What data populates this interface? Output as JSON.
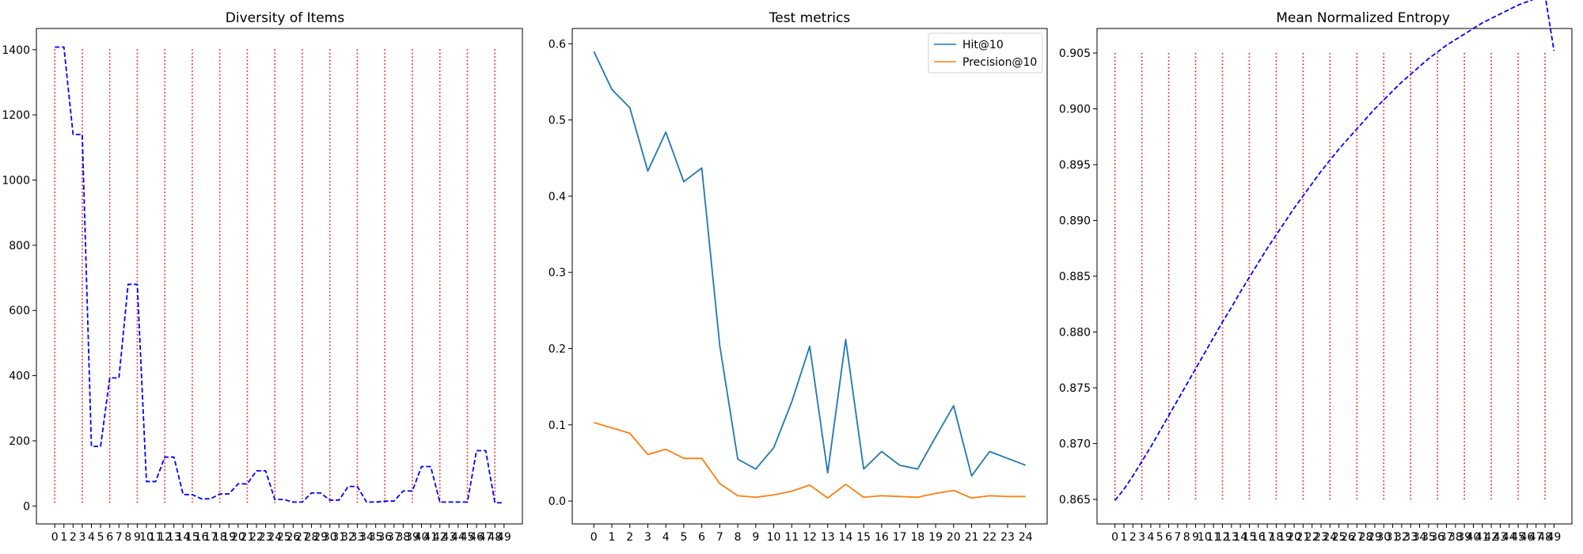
{
  "chart_data": [
    {
      "type": "line",
      "title": "Diversity of Items",
      "xlabel": "",
      "ylabel": "",
      "xlim": [
        -2,
        51
      ],
      "ylim": [
        -55,
        1465
      ],
      "x_ticks": [
        0,
        1,
        2,
        3,
        4,
        5,
        6,
        7,
        8,
        9,
        10,
        11,
        12,
        13,
        14,
        15,
        16,
        17,
        18,
        19,
        20,
        21,
        22,
        23,
        24,
        25,
        26,
        27,
        28,
        29,
        30,
        31,
        32,
        33,
        34,
        35,
        36,
        37,
        38,
        39,
        40,
        41,
        42,
        43,
        44,
        45,
        46,
        47,
        48,
        49
      ],
      "y_ticks": [
        0,
        200,
        400,
        600,
        800,
        1000,
        1200,
        1400
      ],
      "grid": false,
      "vlines": {
        "x": [
          0,
          3,
          6,
          9,
          12,
          15,
          18,
          21,
          24,
          27,
          30,
          33,
          36,
          39,
          42,
          45,
          48
        ],
        "ymin": 10,
        "ymax": 1405,
        "color": "#ff0000",
        "style": "dotted"
      },
      "series": [
        {
          "color": "#0000ff",
          "style": "dashed",
          "x": [
            0,
            1,
            2,
            3,
            4,
            5,
            6,
            7,
            8,
            9,
            10,
            11,
            12,
            13,
            14,
            15,
            16,
            17,
            18,
            19,
            20,
            21,
            22,
            23,
            24,
            25,
            26,
            27,
            28,
            29,
            30,
            31,
            32,
            33,
            34,
            35,
            36,
            37,
            38,
            39,
            40,
            41,
            42,
            43,
            44,
            45,
            46,
            47,
            48,
            49
          ],
          "values": [
            1408,
            1408,
            1140,
            1140,
            183,
            183,
            393,
            393,
            680,
            680,
            75,
            75,
            150,
            150,
            35,
            35,
            22,
            22,
            37,
            37,
            68,
            68,
            108,
            108,
            20,
            20,
            12,
            12,
            40,
            40,
            18,
            18,
            60,
            60,
            12,
            12,
            15,
            15,
            46,
            46,
            121,
            121,
            12,
            12,
            12,
            12,
            170,
            170,
            10,
            10
          ]
        }
      ]
    },
    {
      "type": "line",
      "title": "Test metrics",
      "xlabel": "",
      "ylabel": "",
      "xlim": [
        -1.2,
        25.2
      ],
      "ylim": [
        -0.03,
        0.62
      ],
      "x_ticks": [
        0,
        1,
        2,
        3,
        4,
        5,
        6,
        7,
        8,
        9,
        10,
        11,
        12,
        13,
        14,
        15,
        16,
        17,
        18,
        19,
        20,
        21,
        22,
        23,
        24
      ],
      "y_ticks": [
        0.0,
        0.1,
        0.2,
        0.3,
        0.4,
        0.5,
        0.6
      ],
      "y_tick_labels": [
        "0.0",
        "0.1",
        "0.2",
        "0.3",
        "0.4",
        "0.5",
        "0.6"
      ],
      "grid": false,
      "legend": "top-right",
      "series": [
        {
          "name": "Hit@10",
          "color": "#1f77b4",
          "style": "solid",
          "x": [
            0,
            1,
            2,
            3,
            4,
            5,
            6,
            7,
            8,
            9,
            10,
            11,
            12,
            13,
            14,
            15,
            16,
            17,
            18,
            19,
            20,
            21,
            22,
            23,
            24
          ],
          "values": [
            0.59,
            0.54,
            0.516,
            0.433,
            0.484,
            0.419,
            0.437,
            0.204,
            0.055,
            0.042,
            0.07,
            0.13,
            0.203,
            0.037,
            0.212,
            0.042,
            0.065,
            0.047,
            0.042,
            0.084,
            0.125,
            0.033,
            0.065,
            0.056,
            0.047
          ]
        },
        {
          "name": "Precision@10",
          "color": "#ff7f0e",
          "style": "solid",
          "x": [
            0,
            1,
            2,
            3,
            4,
            5,
            6,
            7,
            8,
            9,
            10,
            11,
            12,
            13,
            14,
            15,
            16,
            17,
            18,
            19,
            20,
            21,
            22,
            23,
            24
          ],
          "values": [
            0.103,
            0.096,
            0.089,
            0.061,
            0.068,
            0.056,
            0.056,
            0.023,
            0.007,
            0.005,
            0.008,
            0.013,
            0.021,
            0.004,
            0.022,
            0.005,
            0.007,
            0.006,
            0.005,
            0.01,
            0.014,
            0.004,
            0.007,
            0.006,
            0.006
          ]
        }
      ]
    },
    {
      "type": "line",
      "title": "Mean Normalized Entropy",
      "xlabel": "",
      "ylabel": "",
      "xlim": [
        -2,
        51
      ],
      "ylim": [
        0.8628,
        0.9072
      ],
      "x_ticks": [
        0,
        1,
        2,
        3,
        4,
        5,
        6,
        7,
        8,
        9,
        10,
        11,
        12,
        13,
        14,
        15,
        16,
        17,
        18,
        19,
        20,
        21,
        22,
        23,
        24,
        25,
        26,
        27,
        28,
        29,
        30,
        31,
        32,
        33,
        34,
        35,
        36,
        37,
        38,
        39,
        40,
        41,
        42,
        43,
        44,
        45,
        46,
        47,
        48,
        49
      ],
      "y_ticks": [
        0.865,
        0.87,
        0.875,
        0.88,
        0.885,
        0.89,
        0.895,
        0.9,
        0.905
      ],
      "y_tick_labels": [
        "0.865",
        "0.870",
        "0.875",
        "0.880",
        "0.885",
        "0.890",
        "0.895",
        "0.900",
        "0.905"
      ],
      "grid": false,
      "vlines": {
        "x": [
          0,
          3,
          6,
          9,
          12,
          15,
          18,
          21,
          24,
          27,
          30,
          33,
          36,
          39,
          42,
          45,
          48
        ],
        "ymin": 0.865,
        "ymax": 0.9051,
        "color": "#ff0000",
        "style": "dotted"
      },
      "series": [
        {
          "color": "#0000ff",
          "style": "dashed",
          "x": [
            0,
            1,
            2,
            3,
            4,
            5,
            6,
            7,
            8,
            9,
            10,
            11,
            12,
            13,
            14,
            15,
            16,
            17,
            18,
            19,
            20,
            21,
            22,
            23,
            24,
            25,
            26,
            27,
            28,
            29,
            30,
            31,
            32,
            33,
            34,
            35,
            36,
            37,
            38,
            39,
            40,
            41,
            42,
            43,
            44,
            45,
            46,
            47,
            48,
            49
          ],
          "values": [
            0.8649,
            0.8659,
            0.8671,
            0.8684,
            0.8697,
            0.8711,
            0.8725,
            0.8739,
            0.8753,
            0.8767,
            0.8781,
            0.8795,
            0.8809,
            0.8822,
            0.8836,
            0.8849,
            0.8862,
            0.8875,
            0.8887,
            0.8899,
            0.8911,
            0.8922,
            0.8933,
            0.8944,
            0.8954,
            0.8964,
            0.8973,
            0.8982,
            0.8991,
            0.9,
            0.9008,
            0.9016,
            0.9024,
            0.9031,
            0.9038,
            0.9045,
            0.9051,
            0.9057,
            0.9062,
            0.9067,
            0.9072,
            0.9077,
            0.9081,
            0.9085,
            0.9089,
            0.9093,
            0.9096,
            0.9099,
            0.9102,
            0.9052
          ]
        }
      ]
    }
  ]
}
